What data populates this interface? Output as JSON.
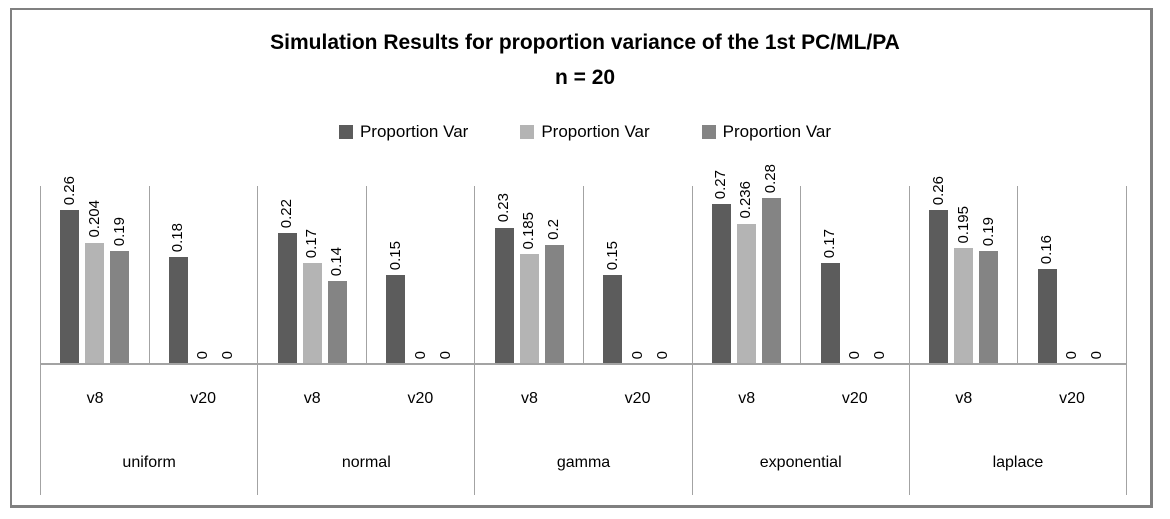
{
  "title": {
    "line1": "Simulation Results for proportion variance of the 1st PC/ML/PA",
    "line2": "n = 20"
  },
  "legend": {
    "items": [
      {
        "label": "Proportion Var",
        "color": "#5c5c5c"
      },
      {
        "label": "Proportion Var",
        "color": "#b4b4b4"
      },
      {
        "label": "Proportion Var",
        "color": "#848484"
      }
    ]
  },
  "chart_data": {
    "type": "bar",
    "title": "Simulation Results for proportion variance of the 1st PC/ML/PA",
    "subtitle": "n = 20",
    "ylabel": "",
    "xlabel": "",
    "ylim": [
      0,
      0.3
    ],
    "grid": false,
    "legend_position": "top-center",
    "value_labels_rotated": true,
    "series_names": [
      "Proportion Var",
      "Proportion Var",
      "Proportion Var"
    ],
    "series_colors": [
      "#5c5c5c",
      "#b4b4b4",
      "#848484"
    ],
    "subgroup_labels": [
      "v8",
      "v20"
    ],
    "group_labels": [
      "uniform",
      "normal",
      "gamma",
      "exponential",
      "laplace"
    ],
    "groups": [
      {
        "label": "uniform",
        "cells": [
          {
            "label": "v8",
            "values": [
              0.26,
              0.204,
              0.19
            ],
            "value_labels": [
              "0.26",
              "0.204",
              "0.19"
            ]
          },
          {
            "label": "v20",
            "values": [
              0.18,
              0,
              0
            ],
            "value_labels": [
              "0.18",
              "0",
              "0"
            ]
          }
        ]
      },
      {
        "label": "normal",
        "cells": [
          {
            "label": "v8",
            "values": [
              0.22,
              0.17,
              0.14
            ],
            "value_labels": [
              "0.22",
              "0.17",
              "0.14"
            ]
          },
          {
            "label": "v20",
            "values": [
              0.15,
              0,
              0
            ],
            "value_labels": [
              "0.15",
              "0",
              "0"
            ]
          }
        ]
      },
      {
        "label": "gamma",
        "cells": [
          {
            "label": "v8",
            "values": [
              0.23,
              0.185,
              0.2
            ],
            "value_labels": [
              "0.23",
              "0.185",
              "0.2"
            ]
          },
          {
            "label": "v20",
            "values": [
              0.15,
              0,
              0
            ],
            "value_labels": [
              "0.15",
              "0",
              "0"
            ]
          }
        ]
      },
      {
        "label": "exponential",
        "cells": [
          {
            "label": "v8",
            "values": [
              0.27,
              0.236,
              0.28
            ],
            "value_labels": [
              "0.27",
              "0.236",
              "0.28"
            ]
          },
          {
            "label": "v20",
            "values": [
              0.17,
              0,
              0
            ],
            "value_labels": [
              "0.17",
              "0",
              "0"
            ]
          }
        ]
      },
      {
        "label": "laplace",
        "cells": [
          {
            "label": "v8",
            "values": [
              0.26,
              0.195,
              0.19
            ],
            "value_labels": [
              "0.26",
              "0.195",
              "0.19"
            ]
          },
          {
            "label": "v20",
            "values": [
              0.16,
              0,
              0
            ],
            "value_labels": [
              "0.16",
              "0",
              "0"
            ]
          }
        ]
      }
    ]
  }
}
